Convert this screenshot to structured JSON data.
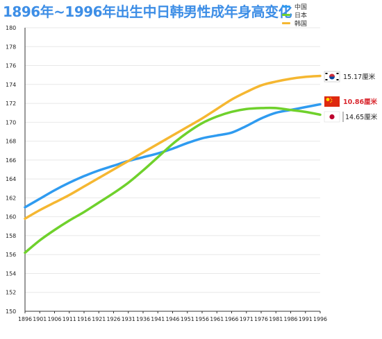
{
  "colors": {
    "china": "#2f9bf0",
    "japan": "#6fd12c",
    "korea": "#f5b731",
    "title": "#3d8ee6"
  },
  "chart_data": {
    "type": "line",
    "title": "1896年~1996年出生中日韩男性成年身高变化",
    "xlabel": "",
    "ylabel": "",
    "x": [
      "1896",
      "1901",
      "1906",
      "1911",
      "1916",
      "1921",
      "1926",
      "1931",
      "1936",
      "1941",
      "1946",
      "1951",
      "1956",
      "1961",
      "1966",
      "1971",
      "1976",
      "1981",
      "1986",
      "1991",
      "1996"
    ],
    "ylim": [
      150,
      180
    ],
    "yticks": [
      150,
      152,
      154,
      156,
      158,
      160,
      162,
      164,
      166,
      168,
      170,
      172,
      174,
      176,
      178,
      180
    ],
    "grid": "horizontal",
    "legend_position": "top-right",
    "series": [
      {
        "name": "中国",
        "color": "#2f9bf0",
        "values": [
          161.0,
          161.9,
          162.8,
          163.6,
          164.3,
          164.9,
          165.4,
          165.9,
          166.3,
          166.7,
          167.2,
          167.8,
          168.3,
          168.6,
          168.9,
          169.6,
          170.4,
          171.0,
          171.3,
          171.6,
          171.9
        ]
      },
      {
        "name": "日本",
        "color": "#6fd12c",
        "values": [
          156.2,
          157.5,
          158.6,
          159.6,
          160.5,
          161.5,
          162.5,
          163.6,
          164.9,
          166.3,
          167.7,
          168.9,
          169.9,
          170.6,
          171.1,
          171.4,
          171.5,
          171.5,
          171.3,
          171.1,
          170.8
        ]
      },
      {
        "name": "韩国",
        "color": "#f5b731",
        "values": [
          159.8,
          160.7,
          161.5,
          162.3,
          163.2,
          164.1,
          165.0,
          165.9,
          166.8,
          167.7,
          168.6,
          169.5,
          170.4,
          171.4,
          172.4,
          173.2,
          173.9,
          174.3,
          174.6,
          174.8,
          174.9
        ]
      }
    ],
    "annotations": [
      {
        "text": "15.17厘米",
        "flag": "korea-flag",
        "series": "韩国",
        "color": "#222222"
      },
      {
        "text": "10.86厘米",
        "flag": "china-flag",
        "series": "中国",
        "color": "#d9272e"
      },
      {
        "text": "14.65厘米",
        "flag": "japan-flag",
        "series": "日本",
        "color": "#222222"
      }
    ]
  }
}
